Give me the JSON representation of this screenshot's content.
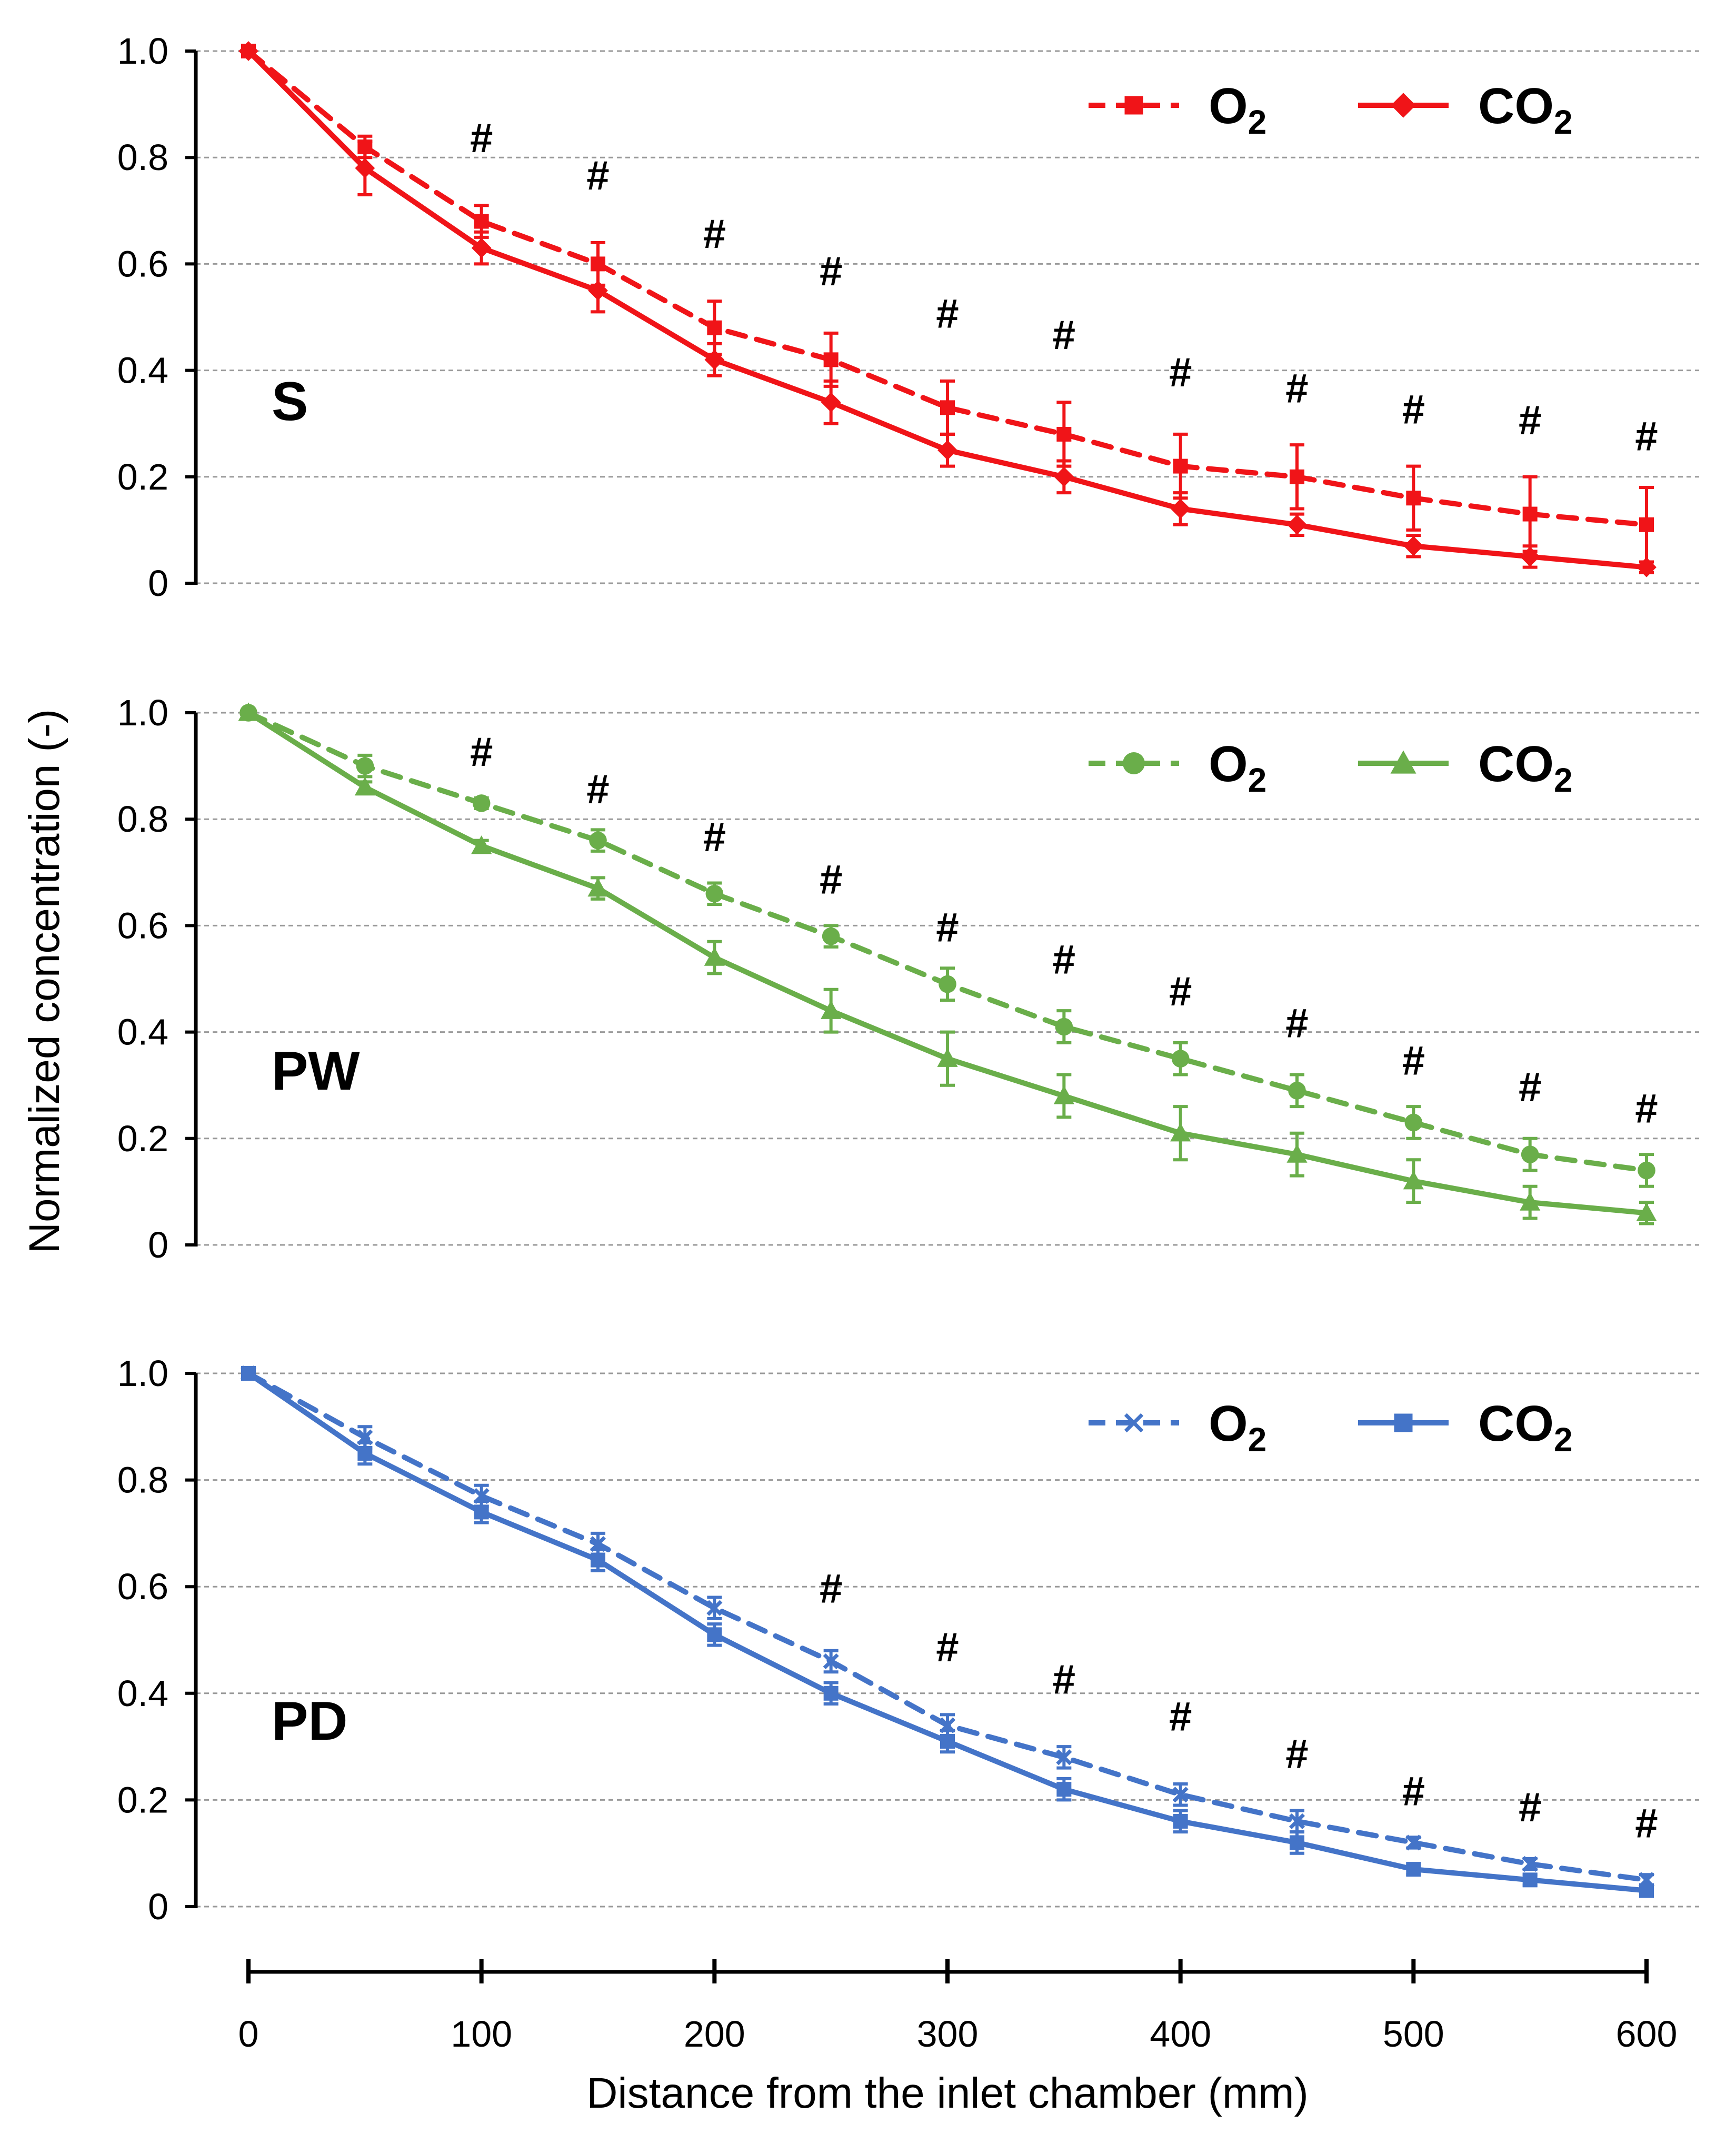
{
  "chart_data": {
    "type": "line",
    "ylabel": "Normalized concentration (-)",
    "xlabel": "Distance from the inlet chamber (mm)",
    "x": [
      0,
      50,
      100,
      150,
      200,
      250,
      300,
      350,
      400,
      450,
      500,
      550,
      600
    ],
    "xticks": [
      0,
      100,
      200,
      300,
      400,
      500,
      600
    ],
    "xtick_labels": [
      "0",
      "100",
      "200",
      "300",
      "400",
      "500",
      "600"
    ],
    "xlim": [
      0,
      600
    ],
    "ylim": [
      0,
      1.0
    ],
    "yticks": [
      0,
      0.2,
      0.4,
      0.6,
      0.8,
      1.0
    ],
    "ytick_labels": [
      "0",
      "0.2",
      "0.4",
      "0.6",
      "0.8",
      "1.0"
    ],
    "grid": "horizontal dashed",
    "significance_marker": "#",
    "legend_placement": "top-right",
    "panels": [
      {
        "label": "S",
        "color": "#f01418",
        "series": [
          {
            "name": "O2",
            "name_base": "O",
            "name_sub": "2",
            "dash": "dashed",
            "marker": "square",
            "values": [
              1.0,
              0.82,
              0.68,
              0.6,
              0.48,
              0.42,
              0.33,
              0.28,
              0.22,
              0.2,
              0.16,
              0.13,
              0.11
            ],
            "errors": [
              0,
              0.02,
              0.03,
              0.04,
              0.05,
              0.05,
              0.05,
              0.06,
              0.06,
              0.06,
              0.06,
              0.07,
              0.07
            ]
          },
          {
            "name": "CO2",
            "name_base": "CO",
            "name_sub": "2",
            "dash": "solid",
            "marker": "diamond",
            "values": [
              1.0,
              0.78,
              0.63,
              0.55,
              0.42,
              0.34,
              0.25,
              0.2,
              0.14,
              0.11,
              0.07,
              0.05,
              0.03
            ],
            "errors": [
              0,
              0.05,
              0.03,
              0.04,
              0.03,
              0.04,
              0.03,
              0.03,
              0.03,
              0.02,
              0.02,
              0.02,
              0.01
            ]
          }
        ],
        "significant_x": [
          100,
          150,
          200,
          250,
          300,
          350,
          400,
          450,
          500,
          550,
          600
        ],
        "hash_y": [
          0.81,
          0.74,
          0.63,
          0.56,
          0.48,
          0.44,
          0.37,
          0.34,
          0.3,
          0.28,
          0.25
        ]
      },
      {
        "label": "PW",
        "color": "#6aae4a",
        "series": [
          {
            "name": "O2",
            "name_base": "O",
            "name_sub": "2",
            "dash": "dashed",
            "marker": "circle",
            "values": [
              1.0,
              0.9,
              0.83,
              0.76,
              0.66,
              0.58,
              0.49,
              0.41,
              0.35,
              0.29,
              0.23,
              0.17,
              0.14
            ],
            "errors": [
              0,
              0.02,
              0.01,
              0.02,
              0.02,
              0.02,
              0.03,
              0.03,
              0.03,
              0.03,
              0.03,
              0.03,
              0.03
            ]
          },
          {
            "name": "CO2",
            "name_base": "CO",
            "name_sub": "2",
            "dash": "solid",
            "marker": "triangle",
            "values": [
              1.0,
              0.86,
              0.75,
              0.67,
              0.54,
              0.44,
              0.35,
              0.28,
              0.21,
              0.17,
              0.12,
              0.08,
              0.06
            ],
            "errors": [
              0,
              0.01,
              0.01,
              0.02,
              0.03,
              0.04,
              0.05,
              0.04,
              0.05,
              0.04,
              0.04,
              0.03,
              0.02
            ]
          }
        ],
        "significant_x": [
          100,
          150,
          200,
          250,
          300,
          350,
          400,
          450,
          500,
          550,
          600
        ],
        "hash_y": [
          0.9,
          0.83,
          0.74,
          0.66,
          0.57,
          0.51,
          0.45,
          0.39,
          0.32,
          0.27,
          0.23
        ]
      },
      {
        "label": "PD",
        "color": "#4474c8",
        "series": [
          {
            "name": "O2",
            "name_base": "O",
            "name_sub": "2",
            "dash": "dashed",
            "marker": "x",
            "values": [
              1.0,
              0.88,
              0.77,
              0.68,
              0.56,
              0.46,
              0.34,
              0.28,
              0.21,
              0.16,
              0.12,
              0.08,
              0.05
            ],
            "errors": [
              0,
              0.02,
              0.02,
              0.02,
              0.02,
              0.02,
              0.02,
              0.02,
              0.02,
              0.02,
              0.01,
              0.01,
              0.01
            ]
          },
          {
            "name": "CO2",
            "name_base": "CO",
            "name_sub": "2",
            "dash": "solid",
            "marker": "square",
            "values": [
              1.0,
              0.85,
              0.74,
              0.65,
              0.51,
              0.4,
              0.31,
              0.22,
              0.16,
              0.12,
              0.07,
              0.05,
              0.03
            ],
            "errors": [
              0,
              0.02,
              0.02,
              0.02,
              0.02,
              0.02,
              0.02,
              0.02,
              0.02,
              0.02,
              0.01,
              0.01,
              0.01
            ]
          }
        ],
        "significant_x": [
          250,
          300,
          350,
          400,
          450,
          500,
          550,
          600
        ],
        "hash_y": [
          0.57,
          0.46,
          0.4,
          0.33,
          0.26,
          0.19,
          0.16,
          0.13
        ]
      }
    ]
  }
}
